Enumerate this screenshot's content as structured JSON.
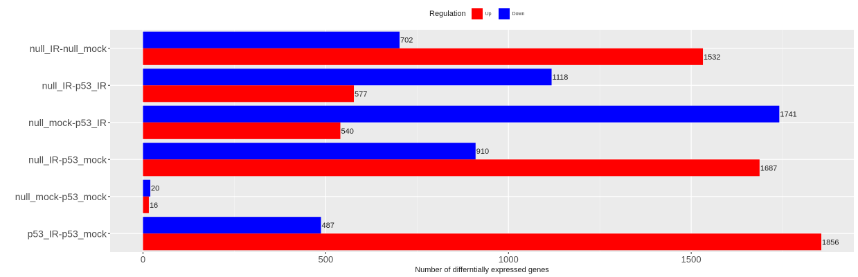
{
  "chart_data": {
    "type": "bar",
    "orientation": "horizontal",
    "categories": [
      "null_IR-null_mock",
      "null_IR-p53_IR",
      "null_mock-p53_IR",
      "null_IR-p53_mock",
      "null_mock-p53_mock",
      "p53_IR-p53_mock"
    ],
    "series": [
      {
        "name": "Up",
        "color": "#ff0000",
        "values": [
          1532,
          577,
          540,
          1687,
          16,
          1856
        ]
      },
      {
        "name": "Down",
        "color": "#0000ff",
        "values": [
          702,
          1118,
          1741,
          910,
          20,
          487
        ]
      }
    ],
    "xlabel": "Number of differntially expressed genes",
    "ylabel": "",
    "xlim": [
      -90,
      1945
    ],
    "xticks": [
      0,
      500,
      1000,
      1500
    ],
    "grid": true,
    "legend": {
      "title": "Regulation",
      "position": "top",
      "entries": [
        "Up",
        "Down"
      ]
    }
  }
}
